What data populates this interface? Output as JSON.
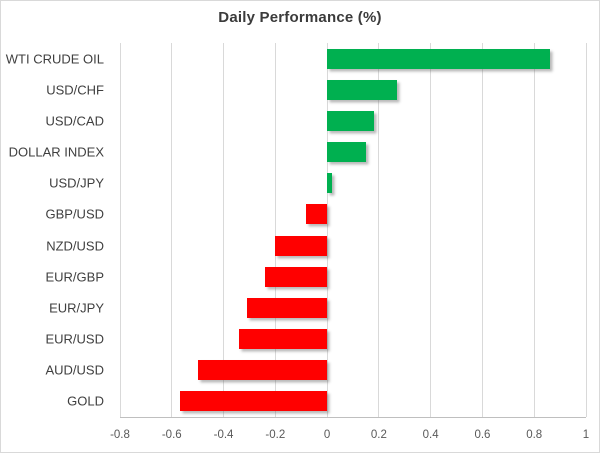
{
  "chart_data": {
    "type": "bar",
    "orientation": "horizontal",
    "title": "Daily Performance (%)",
    "categories": [
      "WTI CRUDE OIL",
      "USD/CHF",
      "USD/CAD",
      "DOLLAR INDEX",
      "USD/JPY",
      "GBP/USD",
      "NZD/USD",
      "EUR/GBP",
      "EUR/JPY",
      "EUR/USD",
      "AUD/USD",
      "GOLD"
    ],
    "values": [
      0.86,
      0.27,
      0.18,
      0.15,
      0.02,
      -0.08,
      -0.2,
      -0.24,
      -0.31,
      -0.34,
      -0.5,
      -0.57
    ],
    "xlabel": "",
    "ylabel": "",
    "xlim": [
      -0.8,
      1.0
    ],
    "x_ticks": [
      -0.8,
      -0.6,
      -0.4,
      -0.2,
      0,
      0.2,
      0.4,
      0.6,
      0.8,
      1
    ],
    "x_tick_labels": [
      "-0.8",
      "-0.6",
      "-0.4",
      "-0.2",
      "0",
      "0.2",
      "0.4",
      "0.6",
      "0.8",
      "1"
    ],
    "grid": "vertical-on",
    "legend": "none",
    "colors": {
      "positive": "#00B050",
      "negative": "#FF0000"
    }
  },
  "style": {
    "background": "#FFFFFF",
    "border_color": "#D9D9D9",
    "grid_color": "#D9D9D9",
    "axis_line_color": "#BFBFBF",
    "title_color": "#3B3B3B",
    "category_label_color": "#3F3F3F",
    "tick_label_color": "#595959"
  }
}
